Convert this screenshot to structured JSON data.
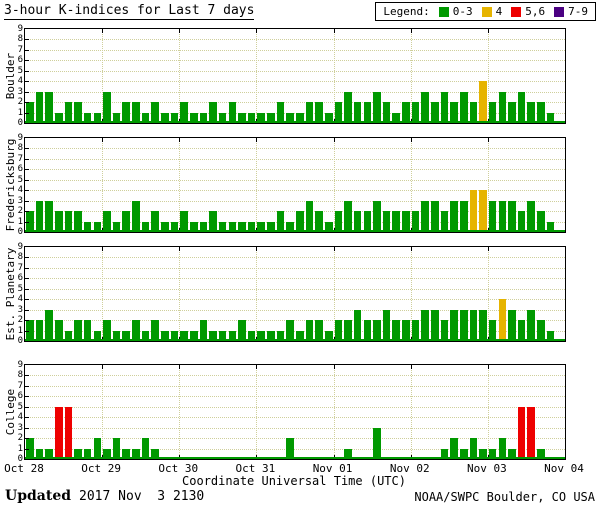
{
  "title": "3-hour K-indices for Last 7 days",
  "legend": {
    "label": "Legend:",
    "items": [
      {
        "label": "0-3",
        "color": "#009900"
      },
      {
        "label": "4",
        "color": "#e6b400"
      },
      {
        "label": "5,6",
        "color": "#ee0000"
      },
      {
        "label": "7-9",
        "color": "#4b0082"
      }
    ]
  },
  "footer": {
    "updated_label": "Updated",
    "updated_value": "2017 Nov  3 2130",
    "credit": "NOAA/SWPC Boulder, CO USA"
  },
  "chart_data": {
    "type": "bar",
    "title": "3-hour K-indices for Last 7 days",
    "xlabel": "Coordinate Universal Time (UTC)",
    "x_tick_labels": [
      "Oct 28",
      "Oct 29",
      "Oct 30",
      "Oct 31",
      "Nov 01",
      "Nov 02",
      "Nov 03",
      "Nov 04"
    ],
    "y_ticks": [
      0,
      1,
      2,
      3,
      4,
      5,
      6,
      7,
      8,
      9
    ],
    "ylim": [
      0,
      9
    ],
    "interval_hours": 3,
    "days": 7,
    "bars_per_day": 8,
    "grid": true,
    "legend_position": "top-right",
    "colors": {
      "green": "#009900",
      "yellow": "#e6b400",
      "red": "#ee0000",
      "purple": "#4b0082"
    },
    "color_bins": {
      "0-3": "green",
      "4": "yellow",
      "5-6": "red",
      "7-9": "purple"
    },
    "panels": [
      {
        "station": "Boulder",
        "k_values": [
          2,
          3,
          3,
          1,
          2,
          2,
          1,
          1,
          3,
          1,
          2,
          2,
          1,
          2,
          1,
          1,
          2,
          1,
          1,
          2,
          1,
          2,
          1,
          1,
          1,
          1,
          2,
          1,
          1,
          2,
          2,
          1,
          2,
          3,
          2,
          2,
          3,
          2,
          1,
          2,
          2,
          3,
          2,
          3,
          2,
          3,
          2,
          4,
          2,
          3,
          2,
          3,
          2,
          2,
          1
        ]
      },
      {
        "station": "Fredericksburg",
        "k_values": [
          2,
          3,
          3,
          2,
          2,
          2,
          1,
          1,
          2,
          1,
          2,
          3,
          1,
          2,
          1,
          1,
          2,
          1,
          1,
          2,
          1,
          1,
          1,
          1,
          1,
          1,
          2,
          1,
          2,
          3,
          2,
          1,
          2,
          3,
          2,
          2,
          3,
          2,
          2,
          2,
          2,
          3,
          3,
          2,
          3,
          3,
          4,
          4,
          3,
          3,
          3,
          2,
          3,
          2,
          1
        ]
      },
      {
        "station": "Est. Planetary",
        "k_values": [
          2,
          2,
          3,
          2,
          1,
          2,
          2,
          1,
          2,
          1,
          1,
          2,
          1,
          2,
          1,
          1,
          1,
          1,
          2,
          1,
          1,
          1,
          2,
          1,
          1,
          1,
          1,
          2,
          1,
          2,
          2,
          1,
          2,
          2,
          3,
          2,
          2,
          3,
          2,
          2,
          2,
          3,
          3,
          2,
          3,
          3,
          3,
          3,
          2,
          4,
          3,
          2,
          3,
          2,
          1
        ]
      },
      {
        "station": "College",
        "k_values": [
          2,
          1,
          1,
          5,
          5,
          1,
          1,
          2,
          1,
          2,
          1,
          1,
          2,
          1,
          0,
          0,
          0,
          0,
          0,
          0,
          0,
          0,
          0,
          0,
          0,
          0,
          0,
          2,
          0,
          0,
          0,
          0,
          0,
          1,
          0,
          0,
          3,
          0,
          0,
          0,
          0,
          0,
          0,
          1,
          2,
          1,
          2,
          1,
          1,
          2,
          1,
          5,
          5,
          1,
          0
        ]
      }
    ]
  }
}
